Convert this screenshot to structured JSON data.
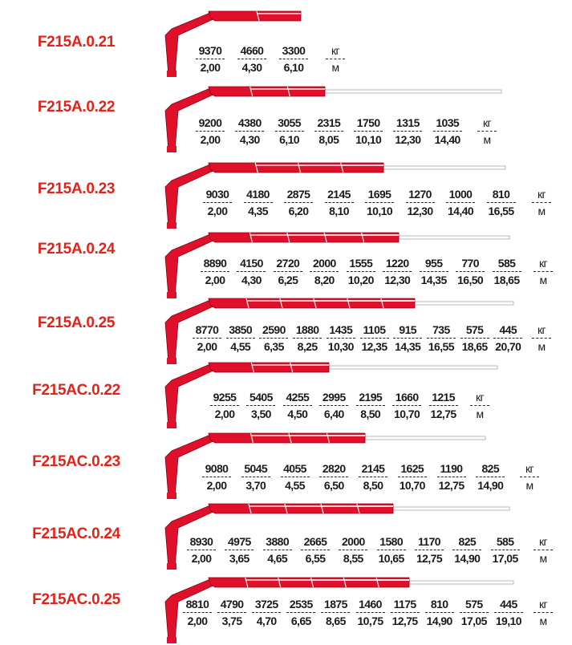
{
  "colors": {
    "model_label": "#e32219",
    "boom_red": "#e0102a",
    "boom_extension": "#ffffff"
  },
  "units": {
    "load": "кг",
    "radius": "м"
  },
  "rows": [
    {
      "model": "F215A.0.21",
      "loads": [
        "9370",
        "4660",
        "3300"
      ],
      "radii": [
        "2,00",
        "4,30",
        "6,10"
      ]
    },
    {
      "model": "F215A.0.22",
      "loads": [
        "9200",
        "4380",
        "3055",
        "2315",
        "1750",
        "1315",
        "1035"
      ],
      "radii": [
        "2,00",
        "4,30",
        "6,10",
        "8,05",
        "10,10",
        "12,30",
        "14,40"
      ]
    },
    {
      "model": "F215A.0.23",
      "loads": [
        "9030",
        "4180",
        "2875",
        "2145",
        "1695",
        "1270",
        "1000",
        "810"
      ],
      "radii": [
        "2,00",
        "4,35",
        "6,20",
        "8,10",
        "10,10",
        "12,30",
        "14,40",
        "16,55"
      ]
    },
    {
      "model": "F215A.0.24",
      "loads": [
        "8890",
        "4150",
        "2720",
        "2000",
        "1555",
        "1220",
        "955",
        "770",
        "585"
      ],
      "radii": [
        "2,00",
        "4,30",
        "6,25",
        "8,20",
        "10,20",
        "12,30",
        "14,35",
        "16,50",
        "18,65"
      ]
    },
    {
      "model": "F215A.0.25",
      "loads": [
        "8770",
        "3850",
        "2590",
        "1880",
        "1435",
        "1105",
        "915",
        "735",
        "575",
        "445"
      ],
      "radii": [
        "2,00",
        "4,55",
        "6,35",
        "8,25",
        "10,30",
        "12,35",
        "14,35",
        "16,55",
        "18,65",
        "20,70"
      ]
    },
    {
      "model": "F215AC.0.22",
      "loads": [
        "9255",
        "5405",
        "4255",
        "2995",
        "2195",
        "1660",
        "1215"
      ],
      "radii": [
        "2,00",
        "3,50",
        "4,50",
        "6,40",
        "8,50",
        "10,70",
        "12,75"
      ]
    },
    {
      "model": "F215AC.0.23",
      "loads": [
        "9080",
        "5045",
        "4055",
        "2820",
        "2145",
        "1625",
        "1190",
        "825"
      ],
      "radii": [
        "2,00",
        "3,70",
        "4,55",
        "6,50",
        "8,50",
        "10,70",
        "12,75",
        "14,90"
      ]
    },
    {
      "model": "F215AC.0.24",
      "loads": [
        "8930",
        "4975",
        "3880",
        "2665",
        "2000",
        "1580",
        "1170",
        "825",
        "585"
      ],
      "radii": [
        "2,00",
        "3,65",
        "4,65",
        "6,55",
        "8,55",
        "10,65",
        "12,75",
        "14,90",
        "17,05"
      ]
    },
    {
      "model": "F215AC.0.25",
      "loads": [
        "8810",
        "4790",
        "3725",
        "2535",
        "1875",
        "1460",
        "1175",
        "810",
        "575",
        "445"
      ],
      "radii": [
        "2,00",
        "3,75",
        "4,70",
        "6,65",
        "8,65",
        "10,75",
        "12,75",
        "14,90",
        "17,05",
        "19,10"
      ]
    }
  ]
}
